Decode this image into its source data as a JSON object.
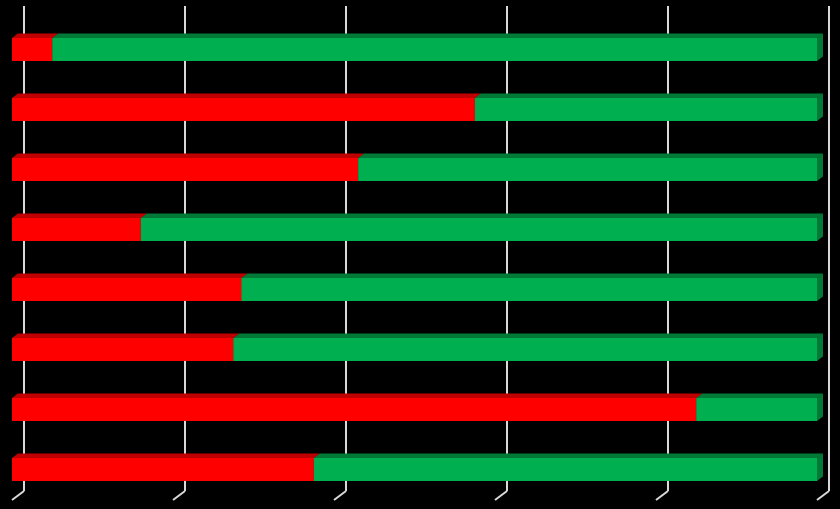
{
  "chart_data": {
    "type": "bar",
    "orientation": "horizontal",
    "stacked": true,
    "percent_stacked": true,
    "three_d": true,
    "title": "",
    "xlabel": "",
    "ylabel": "",
    "xlim": [
      0,
      100
    ],
    "grid": true,
    "legend": "none",
    "background": "#000000",
    "gridline_color": "#d9d9d9",
    "categories": [
      "",
      "",
      "",
      "",
      "",
      "",
      "",
      ""
    ],
    "series": [
      {
        "color": "#ff0000",
        "top_color": "#c00000",
        "values": [
          5,
          57.5,
          43,
          16,
          28.5,
          27.5,
          85,
          37.5
        ]
      },
      {
        "color": "#00b050",
        "top_color": "#007a36",
        "values": [
          95,
          42.5,
          57,
          84,
          71.5,
          72.5,
          15,
          62.5
        ]
      }
    ]
  }
}
